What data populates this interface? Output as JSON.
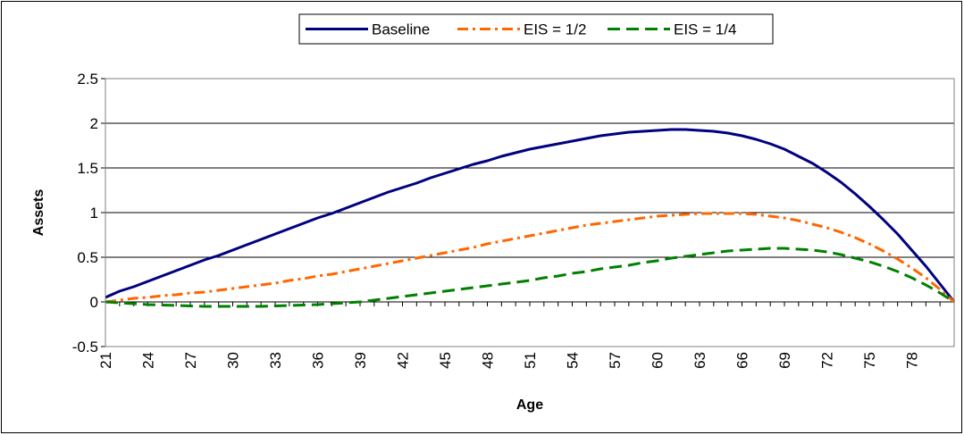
{
  "chart_data": {
    "type": "line",
    "title": "",
    "xlabel": "Age",
    "ylabel": "Assets",
    "ylim": [
      -0.5,
      2.5
    ],
    "yticks": [
      "-0.5",
      "0",
      "0.5",
      "1",
      "1.5",
      "2",
      "2.5"
    ],
    "xlim": [
      21,
      81
    ],
    "xticks": [
      "21",
      "24",
      "27",
      "30",
      "33",
      "36",
      "39",
      "42",
      "45",
      "48",
      "51",
      "54",
      "57",
      "60",
      "63",
      "66",
      "69",
      "72",
      "75",
      "78"
    ],
    "grid": "horizontal",
    "legend_position": "top",
    "x": [
      21,
      22,
      23,
      24,
      25,
      26,
      27,
      28,
      29,
      30,
      31,
      32,
      33,
      34,
      35,
      36,
      37,
      38,
      39,
      40,
      41,
      42,
      43,
      44,
      45,
      46,
      47,
      48,
      49,
      50,
      51,
      52,
      53,
      54,
      55,
      56,
      57,
      58,
      59,
      60,
      61,
      62,
      63,
      64,
      65,
      66,
      67,
      68,
      69,
      70,
      71,
      72,
      73,
      74,
      75,
      76,
      77,
      78,
      79,
      80,
      81
    ],
    "series": [
      {
        "name": "Baseline",
        "color": "#000080",
        "dash": "solid",
        "values": [
          0.05,
          0.12,
          0.17,
          0.23,
          0.29,
          0.35,
          0.41,
          0.47,
          0.52,
          0.58,
          0.64,
          0.7,
          0.76,
          0.82,
          0.88,
          0.94,
          0.99,
          1.05,
          1.11,
          1.17,
          1.23,
          1.28,
          1.33,
          1.39,
          1.44,
          1.49,
          1.54,
          1.58,
          1.63,
          1.67,
          1.71,
          1.74,
          1.77,
          1.8,
          1.83,
          1.86,
          1.88,
          1.9,
          1.91,
          1.92,
          1.93,
          1.93,
          1.92,
          1.91,
          1.89,
          1.86,
          1.82,
          1.77,
          1.71,
          1.63,
          1.55,
          1.45,
          1.34,
          1.21,
          1.07,
          0.92,
          0.76,
          0.58,
          0.4,
          0.2,
          0.0
        ]
      },
      {
        "name": "EIS = 1/2",
        "color": "#FF6600",
        "dash": "dashdot",
        "values": [
          0.0,
          0.02,
          0.04,
          0.05,
          0.07,
          0.08,
          0.1,
          0.11,
          0.13,
          0.15,
          0.17,
          0.19,
          0.21,
          0.24,
          0.26,
          0.29,
          0.31,
          0.34,
          0.37,
          0.4,
          0.43,
          0.46,
          0.49,
          0.52,
          0.55,
          0.58,
          0.61,
          0.65,
          0.68,
          0.71,
          0.74,
          0.77,
          0.8,
          0.83,
          0.86,
          0.88,
          0.9,
          0.92,
          0.94,
          0.96,
          0.97,
          0.98,
          0.99,
          0.99,
          0.99,
          0.99,
          0.98,
          0.96,
          0.94,
          0.91,
          0.87,
          0.83,
          0.78,
          0.72,
          0.65,
          0.57,
          0.48,
          0.38,
          0.27,
          0.14,
          0.0
        ]
      },
      {
        "name": "EIS = 1/4",
        "color": "#008000",
        "dash": "dashed",
        "values": [
          0.0,
          -0.01,
          -0.02,
          -0.03,
          -0.035,
          -0.04,
          -0.045,
          -0.05,
          -0.05,
          -0.05,
          -0.05,
          -0.05,
          -0.045,
          -0.04,
          -0.035,
          -0.03,
          -0.02,
          -0.01,
          0.0,
          0.02,
          0.04,
          0.06,
          0.08,
          0.1,
          0.12,
          0.14,
          0.16,
          0.18,
          0.2,
          0.22,
          0.24,
          0.27,
          0.29,
          0.32,
          0.34,
          0.37,
          0.39,
          0.41,
          0.44,
          0.46,
          0.49,
          0.51,
          0.53,
          0.55,
          0.57,
          0.58,
          0.59,
          0.6,
          0.6,
          0.59,
          0.58,
          0.56,
          0.53,
          0.49,
          0.45,
          0.4,
          0.34,
          0.27,
          0.19,
          0.1,
          0.0
        ]
      }
    ]
  }
}
